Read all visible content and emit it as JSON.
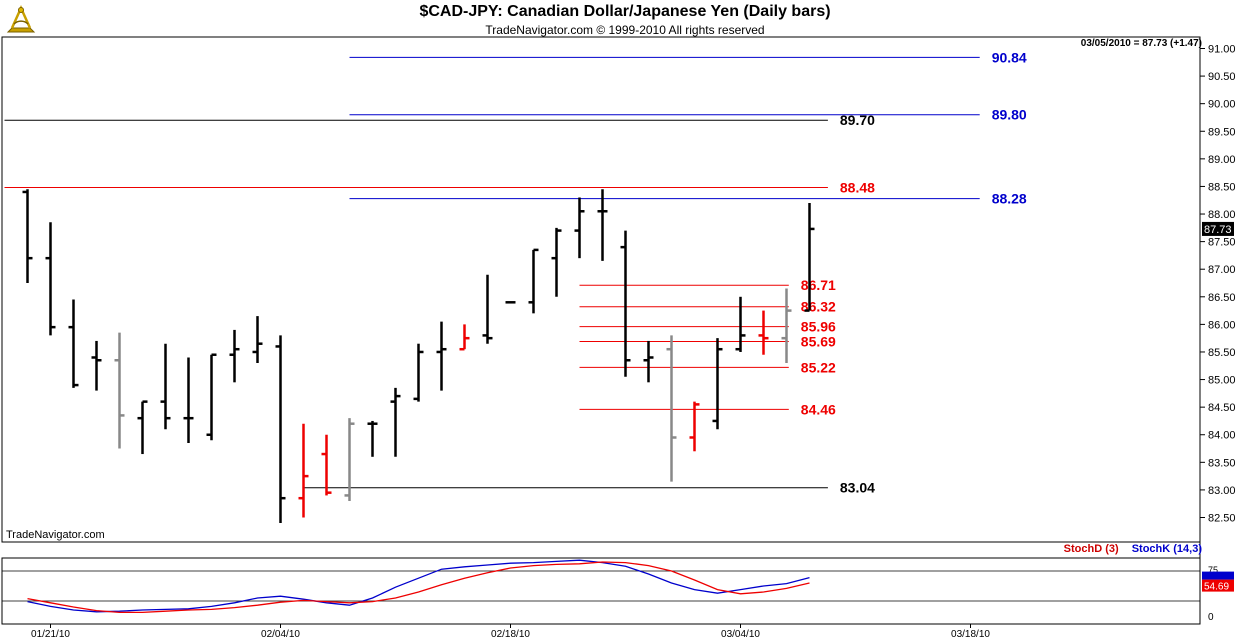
{
  "title": "$CAD-JPY:  Canadian Dollar/Japanese Yen  (Daily bars)",
  "subtitle": "TradeNavigator.com © 1999-2010 All rights reserved",
  "quote": "03/05/2010 = 87.73 (+1.47)",
  "watermark": "TradeNavigator.com",
  "logo_icon": "sextant-icon",
  "colors": {
    "up": "#000000",
    "down": "#888888",
    "red": "#ee0000",
    "blue": "#0000cc"
  },
  "chart_data": {
    "type": "ohlc-bar",
    "ylim": [
      82.3,
      91.2
    ],
    "y_ticks": [
      "82.50",
      "83.00",
      "83.50",
      "84.00",
      "84.50",
      "85.00",
      "85.50",
      "86.00",
      "86.50",
      "87.00",
      "87.50",
      "88.00",
      "88.50",
      "89.00",
      "89.50",
      "90.00",
      "90.50",
      "91.00"
    ],
    "x_ticks": [
      {
        "label": "01/21/10",
        "index": 1
      },
      {
        "label": "02/04/10",
        "index": 11
      },
      {
        "label": "02/18/10",
        "index": 21
      },
      {
        "label": "03/04/10",
        "index": 31
      },
      {
        "label": "03/18/10",
        "index": 41
      }
    ],
    "last_price_label": "87.73",
    "last_price": 87.73,
    "bars": [
      {
        "o": 88.4,
        "h": 88.45,
        "l": 86.75,
        "c": 87.2,
        "color": "black"
      },
      {
        "o": 87.2,
        "h": 87.85,
        "l": 85.8,
        "c": 85.95,
        "color": "black"
      },
      {
        "o": 85.95,
        "h": 86.45,
        "l": 84.85,
        "c": 84.9,
        "color": "black"
      },
      {
        "o": 85.4,
        "h": 85.7,
        "l": 84.8,
        "c": 85.35,
        "color": "black"
      },
      {
        "o": 85.35,
        "h": 85.85,
        "l": 83.75,
        "c": 84.35,
        "color": "gray"
      },
      {
        "o": 84.3,
        "h": 84.6,
        "l": 83.65,
        "c": 84.6,
        "color": "black"
      },
      {
        "o": 84.6,
        "h": 85.65,
        "l": 84.1,
        "c": 84.3,
        "color": "black"
      },
      {
        "o": 84.3,
        "h": 85.4,
        "l": 83.85,
        "c": 84.3,
        "color": "black"
      },
      {
        "o": 84.0,
        "h": 85.45,
        "l": 83.9,
        "c": 85.45,
        "color": "black"
      },
      {
        "o": 85.45,
        "h": 85.9,
        "l": 84.95,
        "c": 85.55,
        "color": "black"
      },
      {
        "o": 85.5,
        "h": 86.15,
        "l": 85.3,
        "c": 85.65,
        "color": "black"
      },
      {
        "o": 85.6,
        "h": 85.8,
        "l": 82.4,
        "c": 82.85,
        "color": "black"
      },
      {
        "o": 82.85,
        "h": 84.2,
        "l": 82.5,
        "c": 83.25,
        "color": "red"
      },
      {
        "o": 83.65,
        "h": 84.0,
        "l": 82.9,
        "c": 82.95,
        "color": "red"
      },
      {
        "o": 82.9,
        "h": 84.3,
        "l": 82.8,
        "c": 84.2,
        "color": "gray"
      },
      {
        "o": 84.2,
        "h": 84.25,
        "l": 83.6,
        "c": 84.2,
        "color": "black"
      },
      {
        "o": 84.6,
        "h": 84.85,
        "l": 83.6,
        "c": 84.7,
        "color": "black"
      },
      {
        "o": 84.65,
        "h": 85.65,
        "l": 84.6,
        "c": 85.5,
        "color": "black"
      },
      {
        "o": 85.5,
        "h": 86.05,
        "l": 84.8,
        "c": 85.55,
        "color": "black"
      },
      {
        "o": 85.55,
        "h": 86.0,
        "l": 85.55,
        "c": 85.75,
        "color": "red"
      },
      {
        "o": 85.8,
        "h": 86.9,
        "l": 85.65,
        "c": 85.75,
        "color": "black"
      },
      {
        "o": 86.4,
        "h": 86.4,
        "l": 86.4,
        "c": 86.4,
        "color": "black"
      },
      {
        "o": 86.4,
        "h": 87.35,
        "l": 86.2,
        "c": 87.35,
        "color": "black"
      },
      {
        "o": 87.2,
        "h": 87.75,
        "l": 86.5,
        "c": 87.7,
        "color": "black"
      },
      {
        "o": 87.7,
        "h": 88.3,
        "l": 87.2,
        "c": 88.05,
        "color": "black"
      },
      {
        "o": 88.05,
        "h": 88.45,
        "l": 87.15,
        "c": 88.05,
        "color": "black"
      },
      {
        "o": 87.4,
        "h": 87.7,
        "l": 85.05,
        "c": 85.35,
        "color": "black"
      },
      {
        "o": 85.35,
        "h": 85.7,
        "l": 84.95,
        "c": 85.4,
        "color": "black"
      },
      {
        "o": 85.55,
        "h": 85.8,
        "l": 83.15,
        "c": 83.95,
        "color": "gray"
      },
      {
        "o": 83.95,
        "h": 84.6,
        "l": 83.7,
        "c": 84.55,
        "color": "red"
      },
      {
        "o": 84.25,
        "h": 85.75,
        "l": 84.1,
        "c": 85.55,
        "color": "black"
      },
      {
        "o": 85.55,
        "h": 86.5,
        "l": 85.5,
        "c": 85.8,
        "color": "black"
      },
      {
        "o": 85.8,
        "h": 86.25,
        "l": 85.45,
        "c": 85.75,
        "color": "red"
      },
      {
        "o": 85.75,
        "h": 86.65,
        "l": 85.3,
        "c": 86.25,
        "color": "gray"
      },
      {
        "o": 86.25,
        "h": 88.2,
        "l": 86.25,
        "c": 87.73,
        "color": "black"
      }
    ],
    "levels": [
      {
        "label": "90.84",
        "value": 90.84,
        "color": "blue",
        "from_index": 14,
        "to_index": 41.4
      },
      {
        "label": "89.80",
        "value": 89.8,
        "color": "blue",
        "from_index": 14,
        "to_index": 41.4
      },
      {
        "label": "89.70",
        "value": 89.7,
        "color": "black",
        "from_index": -1,
        "to_index": 34.8
      },
      {
        "label": "88.48",
        "value": 88.48,
        "color": "red",
        "from_index": -1,
        "to_index": 34.8
      },
      {
        "label": "88.28",
        "value": 88.28,
        "color": "blue",
        "from_index": 14,
        "to_index": 41.4
      },
      {
        "label": "86.71",
        "value": 86.71,
        "color": "red",
        "from_index": 24,
        "to_index": 33.1
      },
      {
        "label": "86.32",
        "value": 86.32,
        "color": "red",
        "from_index": 24,
        "to_index": 33.1
      },
      {
        "label": "85.96",
        "value": 85.96,
        "color": "red",
        "from_index": 24,
        "to_index": 33.1
      },
      {
        "label": "85.69",
        "value": 85.69,
        "color": "red",
        "from_index": 24,
        "to_index": 33.1
      },
      {
        "label": "85.22",
        "value": 85.22,
        "color": "red",
        "from_index": 24,
        "to_index": 33.1
      },
      {
        "label": "84.46",
        "value": 84.46,
        "color": "red",
        "from_index": 24,
        "to_index": 33.1
      },
      {
        "label": "83.04",
        "value": 83.04,
        "color": "black",
        "from_index": 12,
        "to_index": 34.8
      }
    ],
    "oscillator": {
      "legend": [
        "StochD (3)",
        "StochK (14,3)"
      ],
      "ylim": [
        0,
        100
      ],
      "y_tick_label": "0",
      "upper_band": 75,
      "lower_band": 25,
      "label_75": "75",
      "last_value_label": "54.69",
      "stochD": [
        29,
        22,
        15,
        9,
        6,
        6,
        8,
        10,
        11,
        14,
        18,
        23,
        26,
        24,
        22,
        24,
        30,
        40,
        52,
        63,
        72,
        80,
        84,
        86,
        87,
        90,
        89,
        84,
        75,
        60,
        44,
        37,
        40,
        46,
        55
      ],
      "stochK": [
        24,
        16,
        10,
        7,
        8,
        10,
        11,
        12,
        16,
        22,
        30,
        33,
        28,
        22,
        18,
        30,
        48,
        63,
        78,
        82,
        85,
        88,
        89,
        91,
        93,
        89,
        83,
        70,
        55,
        44,
        38,
        44,
        50,
        54,
        64
      ]
    }
  },
  "oscillator_labels": {
    "d": "StochD (3)",
    "k": "StochK (14,3)"
  }
}
